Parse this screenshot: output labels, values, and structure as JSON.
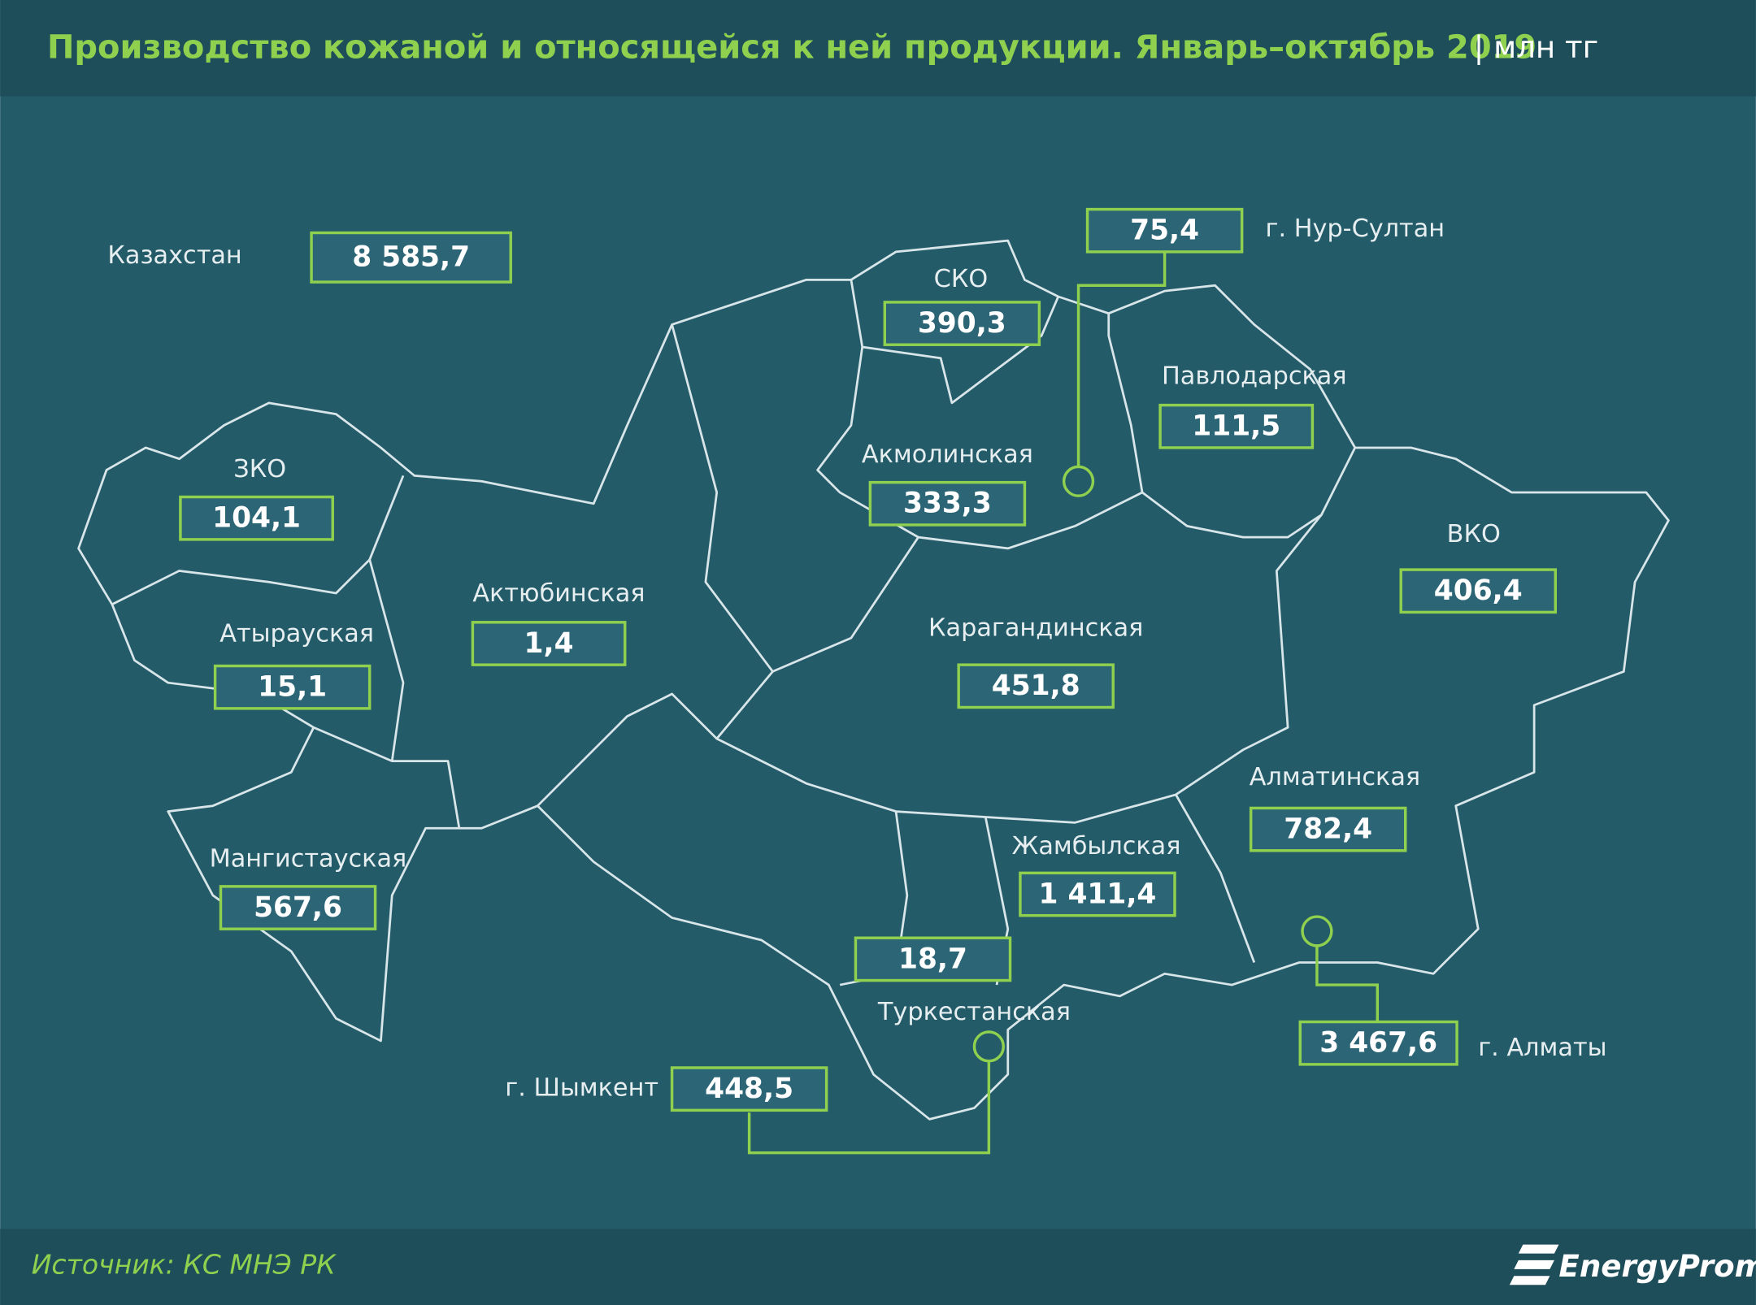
{
  "header": {
    "title": "Производство кожаной и относящейся к ней продукции. Январь–октябрь 2019",
    "unit": "| млн тг"
  },
  "total": {
    "label": "Казахстан",
    "value": "8 585,7"
  },
  "regions": [
    {
      "name": "СКО",
      "value": "390,3"
    },
    {
      "name": "г. Нур-Султан",
      "value": "75,4"
    },
    {
      "name": "Павлодарская",
      "value": "111,5"
    },
    {
      "name": "Акмолинская",
      "value": "333,3"
    },
    {
      "name": "ЗКО",
      "value": "104,1"
    },
    {
      "name": "ВКО",
      "value": "406,4"
    },
    {
      "name": "Актюбинская",
      "value": "1,4"
    },
    {
      "name": "Атырауская",
      "value": "15,1"
    },
    {
      "name": "Карагандинская",
      "value": "451,8"
    },
    {
      "name": "Алматинская",
      "value": "782,4"
    },
    {
      "name": "Мангистауская",
      "value": "567,6"
    },
    {
      "name": "Жамбылская",
      "value": "1 411,4"
    },
    {
      "name": "Туркестанская",
      "value": "18,7"
    },
    {
      "name": "г. Алматы",
      "value": "3 467,6"
    },
    {
      "name": "г. Шымкент",
      "value": "448,5"
    }
  ],
  "footer": {
    "source": "Источник: КС МНЭ РК",
    "logo": "EnergyProm"
  }
}
